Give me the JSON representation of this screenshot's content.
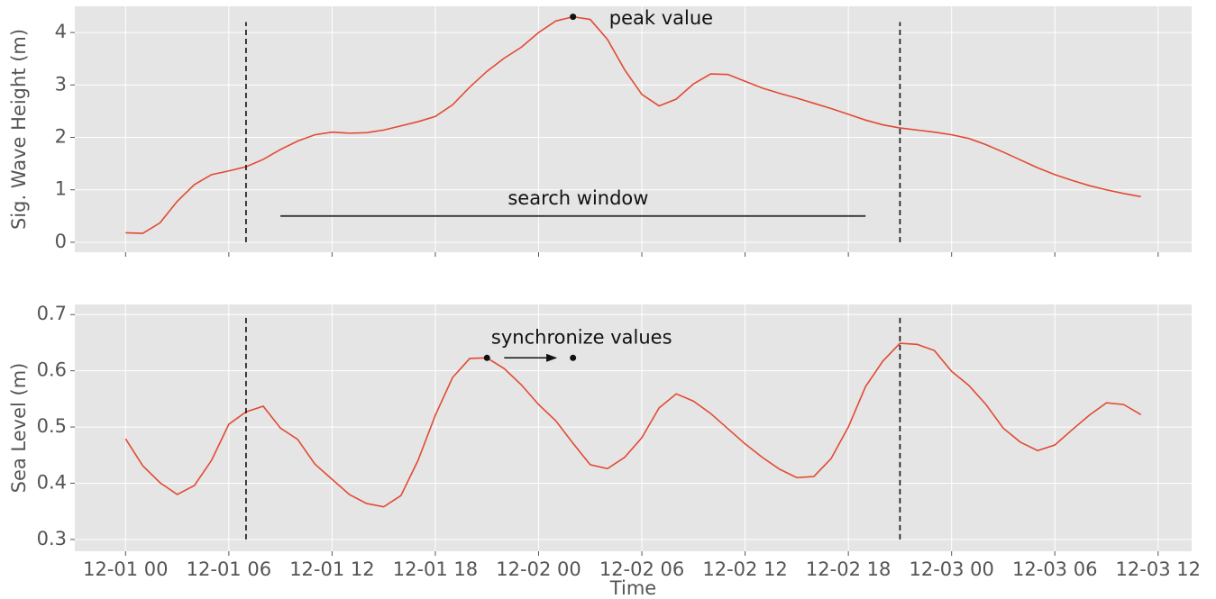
{
  "chart_data": [
    {
      "type": "line",
      "ylabel": "Sig. Wave Height (m)",
      "x": [
        0,
        1,
        2,
        3,
        4,
        5,
        6,
        7,
        8,
        9,
        10,
        11,
        12,
        13,
        14,
        15,
        16,
        17,
        18,
        19,
        20,
        21,
        22,
        23,
        24,
        25,
        26,
        27,
        28,
        29,
        30,
        31,
        32,
        33,
        34,
        35,
        36,
        37,
        38,
        39,
        40,
        41,
        42,
        43,
        44,
        45,
        46,
        47,
        48,
        49,
        50,
        51,
        52,
        53,
        54,
        55,
        56,
        57,
        58,
        59
      ],
      "series": [
        {
          "color": "#e24a33",
          "values": [
            0.18,
            0.17,
            0.37,
            0.78,
            1.1,
            1.29,
            1.36,
            1.44,
            1.58,
            1.77,
            1.93,
            2.05,
            2.1,
            2.08,
            2.09,
            2.14,
            2.22,
            2.3,
            2.4,
            2.62,
            2.96,
            3.26,
            3.51,
            3.72,
            4.0,
            4.22,
            4.3,
            4.25,
            3.87,
            3.29,
            2.82,
            2.6,
            2.73,
            3.02,
            3.21,
            3.2,
            3.07,
            2.94,
            2.84,
            2.75,
            2.65,
            2.55,
            2.44,
            2.33,
            2.24,
            2.18,
            2.14,
            2.1,
            2.05,
            1.98,
            1.86,
            1.72,
            1.57,
            1.42,
            1.29,
            1.18,
            1.08,
            1.0,
            0.93,
            0.87
          ]
        }
      ],
      "xlim": [
        -2.95,
        61.95
      ],
      "ylim": [
        -0.19,
        4.5
      ],
      "xticks": [
        0,
        6,
        12,
        18,
        24,
        30,
        36,
        42,
        48,
        54,
        60
      ],
      "yticks": [
        0,
        1,
        2,
        3,
        4
      ],
      "grid": true,
      "vlines": [
        7,
        45
      ],
      "vline_span": [
        0,
        4.2
      ],
      "segments": [
        {
          "x": [
            9,
            43
          ],
          "y": 0.5
        }
      ],
      "points": [
        {
          "x": 26,
          "y": 4.3
        }
      ],
      "annotations": [
        {
          "text": "peak value",
          "x": 28.1,
          "y": 4.26,
          "align": "left"
        },
        {
          "text": "search window",
          "x": 26.3,
          "y": 0.82,
          "align": "center"
        }
      ]
    },
    {
      "type": "line",
      "ylabel": "Sea Level (m)",
      "xlabel": "Time",
      "x": [
        0,
        1,
        2,
        3,
        4,
        5,
        6,
        7,
        8,
        9,
        10,
        11,
        12,
        13,
        14,
        15,
        16,
        17,
        18,
        19,
        20,
        21,
        22,
        23,
        24,
        25,
        26,
        27,
        28,
        29,
        30,
        31,
        32,
        33,
        34,
        35,
        36,
        37,
        38,
        39,
        40,
        41,
        42,
        43,
        44,
        45,
        46,
        47,
        48,
        49,
        50,
        51,
        52,
        53,
        54,
        55,
        56,
        57,
        58,
        59
      ],
      "series": [
        {
          "color": "#e24a33",
          "values": [
            0.479,
            0.431,
            0.401,
            0.38,
            0.396,
            0.441,
            0.505,
            0.527,
            0.537,
            0.498,
            0.478,
            0.434,
            0.407,
            0.38,
            0.364,
            0.358,
            0.378,
            0.441,
            0.521,
            0.588,
            0.622,
            0.623,
            0.604,
            0.575,
            0.54,
            0.511,
            0.471,
            0.433,
            0.426,
            0.446,
            0.481,
            0.534,
            0.559,
            0.546,
            0.524,
            0.497,
            0.47,
            0.446,
            0.425,
            0.41,
            0.412,
            0.444,
            0.5,
            0.572,
            0.617,
            0.649,
            0.647,
            0.636,
            0.599,
            0.574,
            0.54,
            0.498,
            0.473,
            0.458,
            0.468,
            0.495,
            0.521,
            0.543,
            0.54,
            0.522
          ]
        }
      ],
      "xlim": [
        -2.95,
        61.95
      ],
      "ylim": [
        0.279,
        0.718
      ],
      "xticks": [
        {
          "value": 0,
          "label": "12-01 00"
        },
        {
          "value": 6,
          "label": "12-01 06"
        },
        {
          "value": 12,
          "label": "12-01 12"
        },
        {
          "value": 18,
          "label": "12-01 18"
        },
        {
          "value": 24,
          "label": "12-02 00"
        },
        {
          "value": 30,
          "label": "12-02 06"
        },
        {
          "value": 36,
          "label": "12-02 12"
        },
        {
          "value": 42,
          "label": "12-02 18"
        },
        {
          "value": 48,
          "label": "12-03 00"
        },
        {
          "value": 54,
          "label": "12-03 06"
        },
        {
          "value": 60,
          "label": "12-03 12"
        }
      ],
      "yticks": [
        0.3,
        0.4,
        0.5,
        0.6,
        0.7
      ],
      "grid": true,
      "vlines": [
        7,
        45
      ],
      "vline_span": [
        0.3,
        0.7
      ],
      "points": [
        {
          "x": 21,
          "y": 0.623
        },
        {
          "x": 26,
          "y": 0.623
        }
      ],
      "arrows": [
        {
          "from": [
            22,
            0.623
          ],
          "to": [
            25,
            0.623
          ]
        }
      ],
      "annotations": [
        {
          "text": "synchronize values",
          "x": 26.5,
          "y": 0.658,
          "align": "center"
        }
      ]
    }
  ]
}
